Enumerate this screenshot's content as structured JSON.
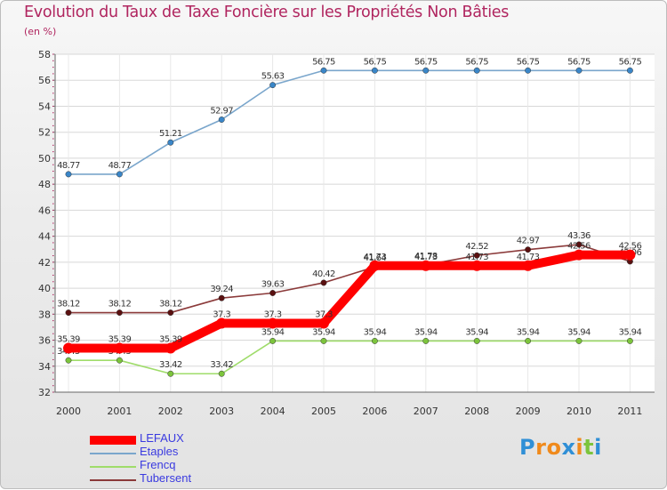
{
  "chart_data": {
    "type": "line",
    "title": "Evolution du Taux de Taxe Foncière sur les Propriétés Non Bâties",
    "subtitle": "(en %)",
    "x": [
      "2000",
      "2001",
      "2002",
      "2003",
      "2004",
      "2005",
      "2006",
      "2007",
      "2008",
      "2009",
      "2010",
      "2011"
    ],
    "ylim": [
      32,
      58
    ],
    "yticks": [
      32,
      34,
      36,
      38,
      40,
      42,
      44,
      46,
      48,
      50,
      52,
      54,
      56,
      58
    ],
    "grid": true,
    "legend_position": "bottom-left",
    "series": [
      {
        "name": "Etaples",
        "color": "#7aa6cc",
        "marker": "#3a86c8",
        "values": [
          48.77,
          48.77,
          51.21,
          52.97,
          55.63,
          56.75,
          56.75,
          56.75,
          56.75,
          56.75,
          56.75,
          56.75
        ],
        "labels": [
          "48.77",
          "48.77",
          "51.21",
          "52.97",
          "55.63",
          "56.75",
          "56.75",
          "56.75",
          "56.75",
          "56.75",
          "56.75",
          "56.75"
        ]
      },
      {
        "name": "Tubersent",
        "color": "#8b3a3a",
        "marker": "#5a1010",
        "values": [
          38.12,
          38.12,
          38.12,
          39.24,
          39.63,
          40.42,
          41.64,
          41.78,
          42.52,
          42.97,
          43.36,
          42.06
        ],
        "labels": [
          "38.12",
          "38.12",
          "38.12",
          "39.24",
          "39.63",
          "40.42",
          "41.64",
          "41.78",
          "42.52",
          "42.97",
          "43.36",
          "42.06"
        ]
      },
      {
        "name": "Frencq",
        "color": "#9fdc6a",
        "marker": "#7cc43c",
        "values": [
          34.45,
          34.45,
          33.42,
          33.42,
          35.94,
          35.94,
          35.94,
          35.94,
          35.94,
          35.94,
          35.94,
          35.94
        ],
        "labels": [
          "34.45",
          "34.45",
          "33.42",
          "33.42",
          "35.94",
          "35.94",
          "35.94",
          "35.94",
          "35.94",
          "35.94",
          "35.94",
          "35.94"
        ]
      },
      {
        "name": "LEFAUX",
        "color": "#ff0000",
        "marker": "#ff0000",
        "values": [
          35.39,
          35.39,
          35.39,
          37.3,
          37.3,
          37.3,
          41.73,
          41.73,
          41.73,
          41.73,
          42.56,
          42.56
        ],
        "labels": [
          "35.39",
          "35.39",
          "35.39",
          "37.3",
          "37.3",
          "37.3",
          "41.73",
          "41.73",
          "41.73",
          "41.73",
          "42.56",
          "42.56"
        ]
      }
    ],
    "legend": [
      {
        "name": "LEFAUX",
        "color": "#ff0000"
      },
      {
        "name": "Etaples",
        "color": "#7aa6cc"
      },
      {
        "name": "Frencq",
        "color": "#9fdc6a"
      },
      {
        "name": "Tubersent",
        "color": "#8b3a3a"
      }
    ]
  },
  "logo": {
    "letters": [
      "P",
      "r",
      "o",
      "x",
      "i",
      "t",
      "i"
    ],
    "colors": [
      "#2f8fd6",
      "#f08a1c",
      "#f08a1c",
      "#2f8fd6",
      "#f08a1c",
      "#7cc43c",
      "#2f8fd6"
    ]
  }
}
